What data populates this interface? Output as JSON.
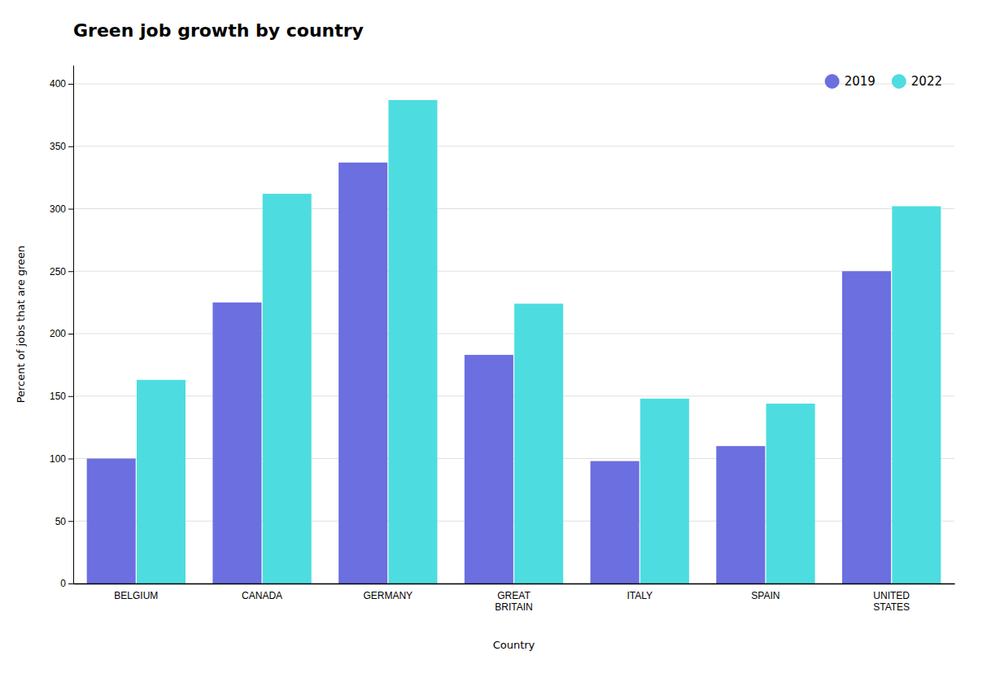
{
  "chart_data": {
    "type": "bar",
    "title": "Green job growth by country",
    "xlabel": "Country",
    "ylabel": "Percent of jobs that are green",
    "categories": [
      "BELGIUM",
      "CANADA",
      "GERMANY",
      "GREAT\nBRITAIN",
      "ITALY",
      "SPAIN",
      "UNITED\nSTATES"
    ],
    "series": [
      {
        "name": "2019",
        "color": "#6B6FE0",
        "values": [
          100,
          225,
          337,
          183,
          98,
          110,
          250
        ]
      },
      {
        "name": "2022",
        "color": "#4DDDE0",
        "values": [
          163,
          312,
          387,
          224,
          148,
          144,
          302
        ]
      }
    ],
    "ylim": [
      0,
      415
    ],
    "yticks": [
      0,
      50,
      100,
      150,
      200,
      250,
      300,
      350,
      400
    ],
    "grid": true,
    "legend": "upper right"
  }
}
